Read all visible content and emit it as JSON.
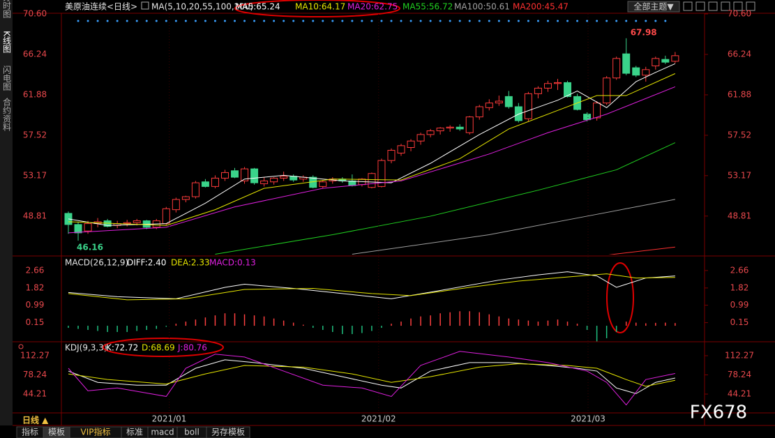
{
  "header": {
    "title": "美原油连续<日线>",
    "ma_params": "MA(5,10,20,55,100,200)",
    "theme": "全部主题▼"
  },
  "sidebar": [
    "分时图",
    "K线图",
    "闪电图",
    "合约资料"
  ],
  "period": "日线 ▲",
  "tabs": [
    "指标",
    "模板",
    "VIP指标",
    "标准",
    "macd",
    "boll",
    "另存模板"
  ],
  "watermark": "FX678",
  "chart_data": [
    {
      "type": "candlestick",
      "up_color": "#ff3b3b",
      "down_color": "#3ad38a",
      "ylim": [
        44.66,
        70.6
      ],
      "yticks": [
        {
          "value": 70.6,
          "label": "70.60"
        },
        66.24,
        61.88,
        57.52,
        53.17,
        48.81
      ],
      "xlim": [
        -0.7,
        62.5
      ],
      "xticks": [
        {
          "value": 10.3,
          "label": "2021/01"
        },
        {
          "value": 31.7,
          "label": "2021/02"
        },
        {
          "value": 53.1,
          "label": "2021/03"
        }
      ],
      "candles": [
        [
          49.1,
          49.3,
          46.9,
          47.9
        ],
        [
          47.9,
          48.2,
          46.16,
          47.0
        ],
        [
          47.2,
          48.3,
          46.9,
          48.0
        ],
        [
          48.0,
          48.6,
          47.6,
          48.2
        ],
        [
          48.3,
          48.5,
          47.6,
          47.7
        ],
        [
          47.8,
          48.3,
          47.5,
          48.0
        ],
        [
          48.0,
          48.4,
          47.7,
          48.1
        ],
        [
          48.1,
          48.5,
          47.8,
          48.3
        ],
        [
          48.3,
          48.4,
          47.4,
          47.6
        ],
        [
          47.6,
          48.5,
          47.4,
          48.3
        ],
        [
          48.0,
          49.8,
          47.8,
          49.6
        ],
        [
          49.5,
          50.8,
          49.2,
          50.6
        ],
        [
          50.6,
          51.0,
          50.3,
          50.9
        ],
        [
          50.9,
          52.6,
          50.7,
          52.4
        ],
        [
          52.5,
          52.8,
          51.9,
          52.0
        ],
        [
          52.0,
          53.2,
          51.8,
          52.9
        ],
        [
          52.9,
          53.8,
          52.6,
          53.5
        ],
        [
          53.7,
          54.0,
          52.9,
          53.0
        ],
        [
          52.6,
          54.1,
          52.3,
          53.9
        ],
        [
          53.9,
          54.0,
          52.2,
          52.4
        ],
        [
          52.3,
          53.0,
          52.0,
          52.6
        ],
        [
          52.5,
          53.0,
          52.2,
          52.9
        ],
        [
          52.9,
          53.6,
          52.6,
          53.1
        ],
        [
          53.1,
          53.3,
          52.5,
          52.7
        ],
        [
          52.8,
          53.2,
          52.5,
          53.0
        ],
        [
          53.0,
          53.2,
          51.8,
          51.9
        ],
        [
          52.0,
          52.7,
          51.8,
          52.5
        ],
        [
          52.6,
          53.0,
          52.3,
          52.8
        ],
        [
          52.8,
          53.0,
          52.4,
          52.6
        ],
        [
          52.6,
          53.3,
          52.0,
          52.1
        ],
        [
          52.2,
          52.9,
          52.0,
          52.8
        ],
        [
          51.9,
          53.5,
          51.8,
          53.4
        ],
        [
          52.0,
          55.0,
          51.9,
          54.8
        ],
        [
          54.8,
          56.1,
          54.5,
          55.9
        ],
        [
          55.6,
          56.6,
          55.3,
          56.4
        ],
        [
          56.2,
          57.1,
          55.8,
          56.9
        ],
        [
          56.9,
          57.8,
          56.5,
          57.6
        ],
        [
          57.6,
          58.2,
          57.3,
          58.0
        ],
        [
          58.0,
          58.4,
          57.6,
          58.3
        ],
        [
          58.3,
          58.6,
          57.9,
          58.4
        ],
        [
          58.4,
          58.7,
          58.0,
          58.2
        ],
        [
          57.8,
          59.6,
          57.6,
          59.5
        ],
        [
          59.5,
          60.8,
          59.2,
          60.6
        ],
        [
          60.5,
          61.4,
          60.2,
          61.0
        ],
        [
          61.0,
          61.8,
          60.7,
          61.2
        ],
        [
          61.7,
          62.3,
          60.4,
          60.6
        ],
        [
          60.6,
          61.0,
          58.9,
          59.1
        ],
        [
          59.3,
          62.2,
          59.0,
          62.0
        ],
        [
          62.0,
          62.8,
          61.5,
          62.6
        ],
        [
          62.6,
          63.4,
          62.2,
          63.1
        ],
        [
          63.1,
          63.6,
          62.4,
          63.2
        ],
        [
          63.2,
          63.4,
          61.6,
          61.7
        ],
        [
          61.7,
          62.0,
          60.2,
          60.3
        ],
        [
          59.8,
          60.0,
          59.0,
          59.2
        ],
        [
          59.4,
          61.2,
          59.1,
          61.0
        ],
        [
          61.0,
          63.9,
          60.8,
          63.7
        ],
        [
          63.7,
          66.0,
          63.5,
          65.8
        ],
        [
          66.3,
          67.98,
          64.0,
          64.2
        ],
        [
          64.8,
          65.0,
          63.8,
          64.0
        ],
        [
          64.0,
          64.9,
          63.3,
          64.6
        ],
        [
          65.0,
          66.0,
          64.6,
          65.8
        ],
        [
          65.7,
          66.1,
          65.2,
          65.4
        ],
        [
          65.5,
          66.5,
          65.3,
          66.1
        ]
      ],
      "series": [
        {
          "name": "MA5",
          "legend_label": "MA5:65.24",
          "color": "#ffffff",
          "x": [
            0,
            4,
            10,
            14,
            18,
            22,
            28,
            33,
            37,
            42,
            46,
            50,
            52,
            55,
            58,
            60,
            62
          ],
          "values": [
            48.5,
            47.8,
            48.0,
            50.2,
            52.8,
            53.2,
            52.6,
            52.4,
            54.5,
            57.6,
            59.8,
            61.3,
            62.3,
            60.5,
            63.3,
            64.3,
            65.24
          ]
        },
        {
          "name": "MA10",
          "legend_label": "MA10:64.17",
          "color": "#e6e600",
          "x": [
            0,
            10,
            15,
            20,
            27,
            34,
            40,
            45,
            50,
            54,
            57,
            62
          ],
          "values": [
            48.2,
            47.8,
            49.5,
            51.8,
            52.8,
            52.7,
            55.0,
            58.2,
            60.2,
            61.8,
            61.8,
            64.17
          ]
        },
        {
          "name": "MA20",
          "legend_label": "MA20:62.75",
          "color": "#e020e0",
          "x": [
            0,
            10,
            17,
            26,
            34,
            43,
            49,
            55,
            62
          ],
          "values": [
            47.0,
            47.6,
            49.8,
            51.8,
            52.6,
            55.5,
            57.8,
            59.8,
            62.75
          ]
        },
        {
          "name": "MA55",
          "legend_label": "MA55:56.72",
          "color": "#20d020",
          "x": [
            15,
            27,
            37,
            48,
            56,
            62
          ],
          "values": [
            44.7,
            46.8,
            48.8,
            51.6,
            53.8,
            56.72
          ]
        },
        {
          "name": "MA100",
          "legend_label": "MA100:50.61",
          "color": "#a0a0a0",
          "x": [
            29,
            43,
            53,
            62
          ],
          "values": [
            44.7,
            46.8,
            48.8,
            50.61
          ]
        },
        {
          "name": "MA200",
          "legend_label": "MA200:45.47",
          "color": "#ff3030",
          "x": [
            55,
            62
          ],
          "values": [
            44.6,
            45.47
          ]
        }
      ]
    },
    {
      "type": "macd",
      "title": "MACD(26,12,9)",
      "ylim": [
        -0.77,
        3.26
      ],
      "yticks": [
        2.66,
        1.82,
        0.99,
        0.15
      ],
      "xlim": [
        -0.7,
        62.5
      ],
      "histogram": {
        "name": "MACD",
        "legend_label": "MACD:0.13",
        "color": "#e020e0",
        "up_color": "#ff4040",
        "down_color": "#20c080",
        "values": [
          -0.1,
          -0.15,
          -0.2,
          -0.25,
          -0.3,
          -0.3,
          -0.3,
          -0.25,
          -0.2,
          -0.15,
          -0.05,
          0.1,
          0.2,
          0.3,
          0.4,
          0.5,
          0.6,
          0.6,
          0.55,
          0.5,
          0.45,
          0.35,
          0.25,
          0.15,
          0.05,
          -0.1,
          -0.2,
          -0.3,
          -0.4,
          -0.4,
          -0.35,
          -0.25,
          -0.1,
          0.1,
          0.2,
          0.35,
          0.45,
          0.5,
          0.6,
          0.65,
          0.7,
          0.7,
          0.65,
          0.55,
          0.45,
          0.35,
          0.3,
          0.25,
          0.2,
          0.25,
          0.3,
          0.2,
          0.1,
          -0.2,
          -0.75,
          -0.6,
          -0.3,
          0.2,
          0.15,
          0.12,
          0.14,
          0.15,
          0.13
        ]
      },
      "series": [
        {
          "name": "DIFF",
          "legend_label": "DIFF:2.40",
          "color": "#ffffff",
          "x": [
            0,
            5,
            11,
            16,
            18,
            23,
            29,
            33,
            38,
            44,
            48,
            51,
            54,
            56,
            59,
            62
          ],
          "values": [
            1.6,
            1.4,
            1.3,
            1.85,
            2.0,
            1.8,
            1.5,
            1.3,
            1.7,
            2.2,
            2.45,
            2.6,
            2.4,
            1.85,
            2.3,
            2.4
          ]
        },
        {
          "name": "DEA",
          "legend_label": "DEA:2.33",
          "color": "#e6e600",
          "x": [
            0,
            6,
            12,
            18,
            25,
            31,
            35,
            41,
            46,
            51,
            55,
            58,
            62
          ],
          "values": [
            1.55,
            1.25,
            1.3,
            1.75,
            1.8,
            1.55,
            1.45,
            1.85,
            2.15,
            2.35,
            2.5,
            2.3,
            2.33
          ]
        }
      ]
    },
    {
      "type": "kdj",
      "title": "KDJ(9,3,3)",
      "ylim": [
        13.3,
        134.55
      ],
      "yticks": [
        112.27,
        78.24,
        44.21
      ],
      "xlim": [
        -0.7,
        62.5
      ],
      "series": [
        {
          "name": "K",
          "legend_label": "K:72.72",
          "color": "#ffffff",
          "x": [
            0,
            3,
            7,
            10,
            13,
            16,
            19,
            24,
            28,
            32,
            34,
            37,
            41,
            45,
            49,
            52,
            54,
            56,
            58,
            60,
            62
          ],
          "values": [
            85,
            65,
            60,
            60,
            90,
            105,
            100,
            90,
            75,
            60,
            55,
            85,
            100,
            100,
            95,
            90,
            85,
            55,
            45,
            65,
            72.72
          ]
        },
        {
          "name": "D",
          "legend_label": "D:68.69",
          "color": "#e6e600",
          "x": [
            0,
            4,
            10,
            14,
            18,
            24,
            29,
            33,
            37,
            42,
            46,
            51,
            54,
            57,
            59,
            62
          ],
          "values": [
            80,
            70,
            62,
            80,
            95,
            92,
            80,
            65,
            75,
            92,
            98,
            95,
            90,
            70,
            58,
            68.69
          ]
        },
        {
          "name": "J",
          "legend_label": "J:80.76",
          "color": "#e020e0",
          "x": [
            0,
            2,
            5,
            10,
            12,
            15,
            18,
            22,
            26,
            30,
            33,
            36,
            40,
            45,
            49,
            53,
            55,
            57,
            59,
            62
          ],
          "values": [
            90,
            50,
            55,
            40,
            90,
            115,
            110,
            85,
            60,
            55,
            40,
            95,
            120,
            110,
            100,
            85,
            65,
            25,
            70,
            80.76
          ]
        }
      ]
    }
  ]
}
